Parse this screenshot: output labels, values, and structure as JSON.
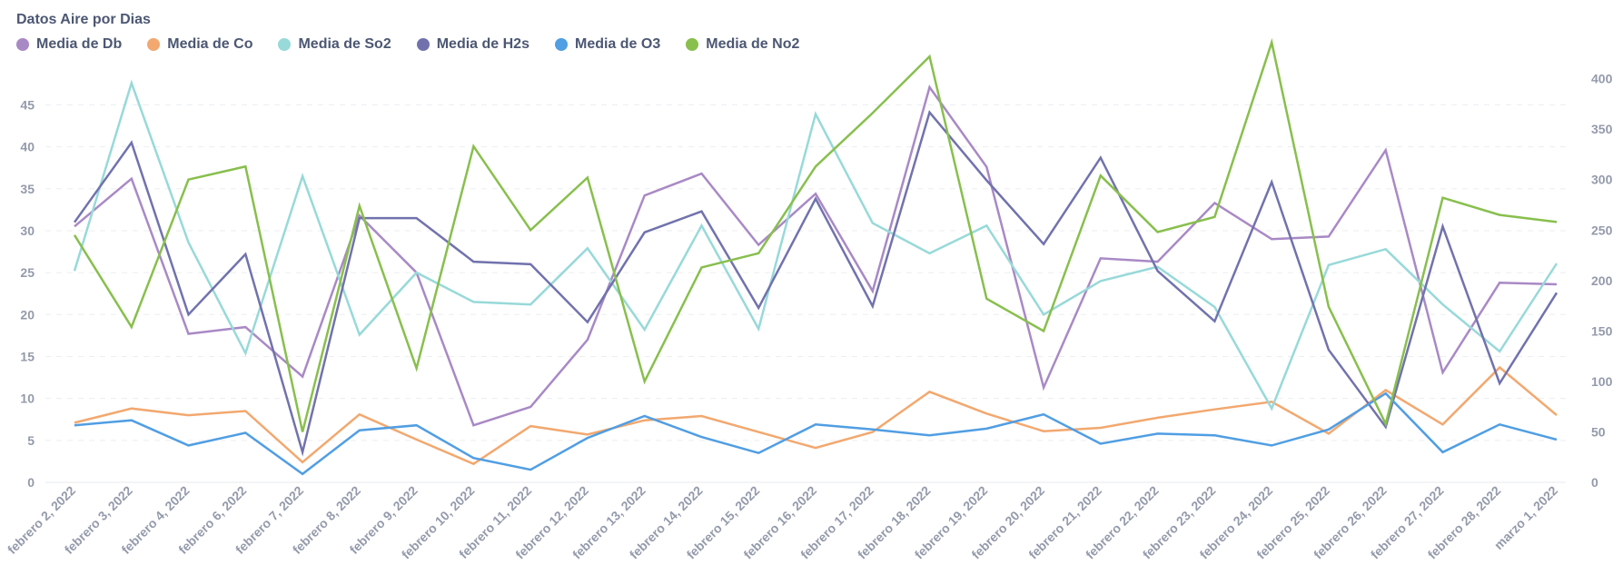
{
  "chart_data": {
    "type": "line",
    "title": "Datos Aire por Dias",
    "categories": [
      "febrero 2, 2022",
      "febrero 3, 2022",
      "febrero 4, 2022",
      "febrero 6, 2022",
      "febrero 7, 2022",
      "febrero 8, 2022",
      "febrero 9, 2022",
      "febrero 10, 2022",
      "febrero 11, 2022",
      "febrero 12, 2022",
      "febrero 13, 2022",
      "febrero 14, 2022",
      "febrero 15, 2022",
      "febrero 16, 2022",
      "febrero 17, 2022",
      "febrero 18, 2022",
      "febrero 19, 2022",
      "febrero 20, 2022",
      "febrero 21, 2022",
      "febrero 22, 2022",
      "febrero 23, 2022",
      "febrero 24, 2022",
      "febrero 25, 2022",
      "febrero 26, 2022",
      "febrero 27, 2022",
      "febrero 28, 2022",
      "marzo 1, 2022"
    ],
    "y_left": {
      "ticks": [
        0,
        5,
        10,
        15,
        20,
        25,
        30,
        35,
        40,
        45
      ],
      "range": [
        0,
        51
      ]
    },
    "y_right": {
      "ticks": [
        0,
        50,
        100,
        150,
        200,
        250,
        300,
        350,
        400
      ],
      "range": [
        0,
        424
      ]
    },
    "grid": true,
    "legend_position": "top-left",
    "series": [
      {
        "name": "Media de Db",
        "color": "#a989c5",
        "axis": "left",
        "values": [
          30.5,
          36.2,
          17.7,
          18.5,
          12.6,
          31.8,
          25.0,
          6.8,
          9.0,
          17.0,
          34.2,
          36.8,
          28.3,
          34.4,
          22.8,
          47.1,
          37.6,
          11.3,
          26.7,
          26.3,
          33.3,
          29.0,
          29.3,
          39.6,
          13.1,
          23.8,
          23.6
        ]
      },
      {
        "name": "Media de Co",
        "color": "#f2a86f",
        "axis": "left",
        "values": [
          7.1,
          8.8,
          8.0,
          8.5,
          2.4,
          8.1,
          5.1,
          2.2,
          6.7,
          5.7,
          7.4,
          7.9,
          6.0,
          4.1,
          6.0,
          10.8,
          8.2,
          6.1,
          6.5,
          7.7,
          8.7,
          9.6,
          5.8,
          11.0,
          6.9,
          13.7,
          8.0
        ]
      },
      {
        "name": "Media de So2",
        "color": "#98d9d9",
        "axis": "left",
        "values": [
          25.2,
          47.6,
          28.6,
          15.4,
          36.5,
          17.6,
          25.0,
          21.5,
          21.2,
          27.9,
          18.2,
          30.6,
          18.3,
          43.9,
          30.9,
          27.3,
          30.6,
          20.0,
          24.0,
          25.7,
          20.9,
          8.8,
          25.9,
          27.8,
          21.2,
          15.6,
          26.1
        ]
      },
      {
        "name": "Media de H2s",
        "color": "#7172ad",
        "axis": "left",
        "values": [
          31.0,
          40.5,
          20.0,
          27.2,
          3.6,
          31.5,
          31.5,
          26.3,
          26.0,
          19.1,
          29.8,
          32.3,
          20.8,
          33.8,
          21.0,
          44.1,
          36.0,
          28.4,
          38.7,
          25.2,
          19.2,
          35.8,
          15.8,
          6.6,
          30.5,
          11.8,
          22.6
        ]
      },
      {
        "name": "Media de O3",
        "color": "#509ee3",
        "axis": "left",
        "values": [
          6.8,
          7.4,
          4.4,
          5.9,
          1.0,
          6.2,
          6.8,
          2.9,
          1.5,
          5.3,
          7.9,
          5.4,
          3.5,
          6.9,
          6.3,
          5.6,
          6.4,
          8.1,
          4.6,
          5.8,
          5.6,
          4.4,
          6.3,
          10.6,
          3.6,
          6.9,
          5.1
        ]
      },
      {
        "name": "Media de No2",
        "color": "#88bf4d",
        "axis": "right",
        "values": [
          245,
          154,
          300,
          313,
          50,
          274,
          113,
          333,
          250,
          302,
          100,
          213,
          227,
          313,
          366,
          422,
          182,
          150,
          304,
          248,
          263,
          436,
          174,
          58,
          282,
          265,
          258
        ]
      }
    ]
  }
}
